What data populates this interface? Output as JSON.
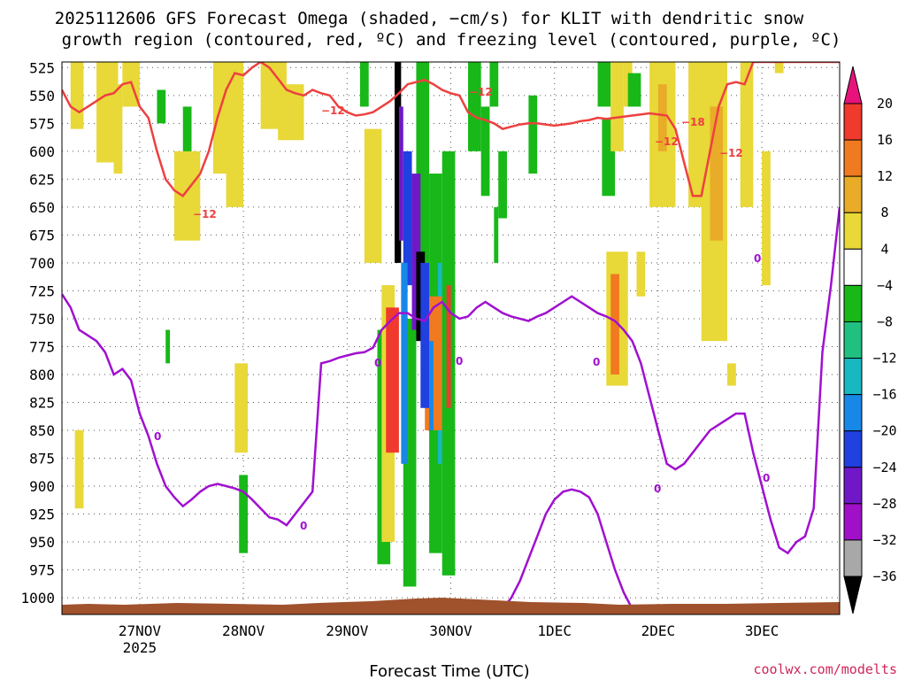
{
  "chart_data": {
    "type": "heatmap",
    "title_line1": "2025112606 GFS Forecast Omega (shaded, −cm/s) for KLIT with dendritic snow",
    "title_line2": "growth region (contoured, red, ºC) and freezing level (contoured, purple, ºC)",
    "xlabel": "Forecast Time (UTC)",
    "credit": "coolwx.com/modelts",
    "x_ticks": [
      {
        "label": "27NOV",
        "hour": 18,
        "sub": "2025"
      },
      {
        "label": "28NOV",
        "hour": 42,
        "sub": ""
      },
      {
        "label": "29NOV",
        "hour": 66,
        "sub": ""
      },
      {
        "label": "30NOV",
        "hour": 90,
        "sub": ""
      },
      {
        "label": "1DEC",
        "hour": 114,
        "sub": ""
      },
      {
        "label": "2DEC",
        "hour": 138,
        "sub": ""
      },
      {
        "label": "3DEC",
        "hour": 162,
        "sub": ""
      }
    ],
    "x_range_hours": [
      0,
      180
    ],
    "y_ticks": [
      525,
      550,
      575,
      600,
      625,
      650,
      675,
      700,
      725,
      750,
      775,
      800,
      825,
      850,
      875,
      900,
      925,
      950,
      975,
      1000
    ],
    "y_range_hpa": [
      520,
      1015
    ],
    "colorbar": {
      "levels": [
        "20",
        "16",
        "12",
        "8",
        "4",
        "−4",
        "−8",
        "−12",
        "−16",
        "−20",
        "−24",
        "−28",
        "−32",
        "−36"
      ],
      "colors": [
        "#e8127c",
        "#f03a2e",
        "#f07a20",
        "#e8ac28",
        "#e8d838",
        "#ffffff",
        "#18b818",
        "#20c080",
        "#18b8c0",
        "#1888e8",
        "#2040e0",
        "#7018c8",
        "#a010c8",
        "#a8a8a8",
        "#000000"
      ]
    },
    "contour_labels": {
      "dgz_a": "−12",
      "dgz_b": "−12",
      "dgz_c": "−12",
      "dgz_d": "−18",
      "dgz_e": "−12",
      "frz_a": "0",
      "frz_b": "0",
      "frz_c": "0",
      "frz_d": "0",
      "frz_e": "0",
      "frz_f": "0",
      "frz_g": "0",
      "frz_h": "0"
    },
    "series": [
      {
        "name": "dendritic growth region top (-12C)",
        "color": "#ee4040",
        "hours": [
          0,
          2,
          4,
          6,
          8,
          10,
          12,
          14,
          16,
          18,
          20,
          22,
          24,
          26,
          28,
          30,
          32,
          34,
          36,
          38,
          40,
          42,
          44,
          46,
          48,
          50,
          52,
          54,
          56,
          58,
          60,
          62,
          64,
          66,
          68,
          70,
          72,
          74,
          76,
          78,
          80,
          82,
          84,
          86,
          88,
          90,
          92,
          94,
          96,
          98,
          100,
          102,
          104,
          106,
          108,
          110,
          112,
          114,
          116,
          118,
          120,
          122,
          124,
          126,
          128,
          130,
          132,
          134,
          136,
          138,
          140,
          142,
          144,
          146,
          148,
          150,
          152,
          154,
          156,
          158,
          160,
          162,
          164,
          166,
          168,
          170,
          172,
          174,
          176,
          178,
          180
        ],
        "hpa": [
          545,
          560,
          565,
          560,
          555,
          550,
          548,
          540,
          538,
          560,
          570,
          600,
          625,
          635,
          640,
          630,
          620,
          600,
          570,
          545,
          530,
          532,
          525,
          520,
          525,
          535,
          545,
          548,
          550,
          545,
          548,
          550,
          560,
          565,
          568,
          567,
          565,
          560,
          555,
          548,
          540,
          538,
          536,
          540,
          545,
          548,
          550,
          565,
          570,
          572,
          575,
          580,
          578,
          576,
          575,
          575,
          576,
          577,
          576,
          575,
          573,
          572,
          570,
          571,
          570,
          569,
          568,
          567,
          566,
          567,
          568,
          580,
          610,
          640,
          640,
          600,
          560,
          540,
          538,
          540,
          520,
          520,
          520,
          520,
          520,
          520,
          520,
          520,
          520,
          520,
          520
        ]
      },
      {
        "name": "freezing level (0C)",
        "color": "#a010d0",
        "hours": [
          0,
          2,
          4,
          6,
          8,
          10,
          12,
          14,
          16,
          18,
          20,
          22,
          24,
          26,
          28,
          30,
          32,
          34,
          36,
          38,
          40,
          42,
          44,
          46,
          48,
          50,
          52,
          54,
          56,
          58,
          60,
          62,
          64,
          66,
          68,
          70,
          72,
          74,
          76,
          78,
          80,
          82,
          84,
          86,
          88,
          90,
          92,
          94,
          96,
          98,
          100,
          102,
          104,
          106,
          108,
          110,
          112,
          114,
          116,
          118,
          120,
          122,
          124,
          126,
          128,
          130,
          132,
          134,
          136,
          138,
          140,
          142,
          144,
          146,
          148,
          150,
          152,
          154,
          156,
          158,
          160,
          162,
          164,
          166,
          168,
          170,
          172,
          174,
          176,
          178,
          180
        ],
        "hpa": [
          728,
          740,
          760,
          765,
          770,
          780,
          800,
          795,
          805,
          835,
          855,
          880,
          900,
          910,
          918,
          912,
          905,
          900,
          898,
          900,
          902,
          905,
          912,
          920,
          928,
          930,
          935,
          925,
          915,
          905,
          790,
          788,
          785,
          783,
          781,
          780,
          776,
          760,
          752,
          745,
          745,
          750,
          752,
          740,
          735,
          745,
          750,
          748,
          740,
          735,
          740,
          745,
          748,
          750,
          752,
          748,
          745,
          740,
          735,
          730,
          735,
          740,
          745,
          748,
          752,
          760,
          770,
          790,
          820,
          850,
          880,
          885,
          880,
          870,
          860,
          850,
          845,
          840,
          835,
          835,
          870,
          900,
          930,
          955,
          960,
          950,
          945,
          920,
          780,
          720,
          650
        ]
      },
      {
        "name": "freezing level lower branch (0C)",
        "color": "#a010d0",
        "hours": [
          102,
          104,
          106,
          108,
          110,
          112,
          114,
          116,
          118,
          120,
          122,
          124,
          126,
          128,
          130,
          132
        ],
        "hpa": [
          1010,
          1000,
          985,
          965,
          945,
          925,
          912,
          905,
          903,
          905,
          910,
          925,
          950,
          975,
          995,
          1010
        ]
      }
    ]
  }
}
